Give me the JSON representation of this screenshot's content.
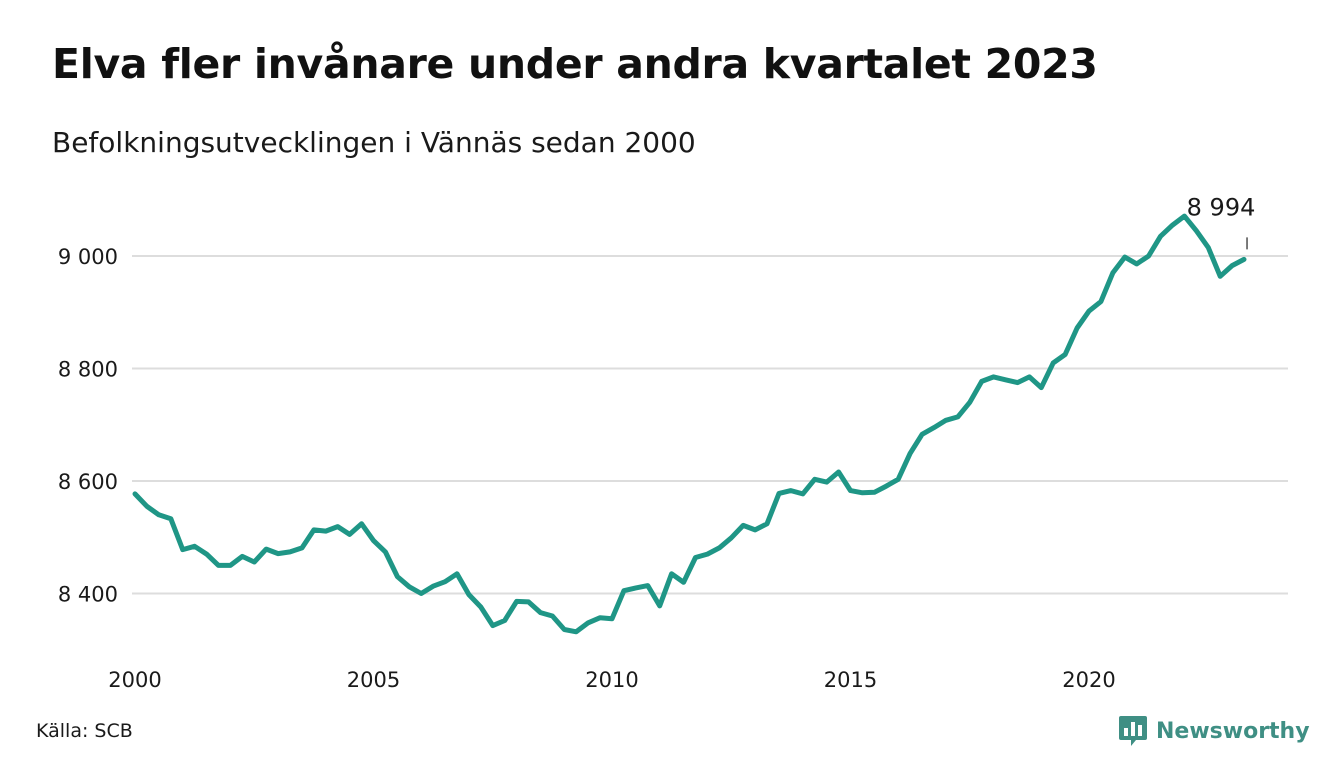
{
  "title": "Elva fler invånare under andra kvartalet 2023",
  "subtitle": "Befolkningsutvecklingen i Vännäs sedan 2000",
  "source": "Källa: SCB",
  "logo": {
    "text": "Newsworthy",
    "icon": "bar-chart-speech-bubble-icon"
  },
  "colors": {
    "line": "#1f9686",
    "grid": "#dddddd",
    "logo": "#3f8f84"
  },
  "chart_data": {
    "type": "line",
    "title": "Elva fler invånare under andra kvartalet 2023",
    "subtitle": "Befolkningsutvecklingen i Vännäs sedan 2000",
    "xlabel": "",
    "ylabel": "",
    "x_unit": "year",
    "xlim": [
      2000,
      2023.5
    ],
    "ylim": [
      8300,
      9050
    ],
    "yticks": [
      8400,
      8600,
      8800,
      9000
    ],
    "ytick_labels": [
      "8 400",
      "8 600",
      "8 800",
      "9 000"
    ],
    "xticks": [
      2000,
      2005,
      2010,
      2015,
      2020
    ],
    "xtick_labels": [
      "2000",
      "2005",
      "2010",
      "2015",
      "2020"
    ],
    "grid": "horizontal",
    "legend": "none",
    "annotation": {
      "x": 2023.25,
      "y": 8994,
      "label": "8 994"
    },
    "x": [
      2000.0,
      2000.25,
      2000.5,
      2000.75,
      2001.0,
      2001.25,
      2001.5,
      2001.75,
      2002.0,
      2002.25,
      2002.5,
      2002.75,
      2003.0,
      2003.25,
      2003.5,
      2003.75,
      2004.0,
      2004.25,
      2004.5,
      2004.75,
      2005.0,
      2005.25,
      2005.5,
      2005.75,
      2006.0,
      2006.25,
      2006.5,
      2006.75,
      2007.0,
      2007.25,
      2007.5,
      2007.75,
      2008.0,
      2008.25,
      2008.5,
      2008.75,
      2009.0,
      2009.25,
      2009.5,
      2009.75,
      2010.0,
      2010.25,
      2010.5,
      2010.75,
      2011.0,
      2011.25,
      2011.5,
      2011.75,
      2012.0,
      2012.25,
      2012.5,
      2012.75,
      2013.0,
      2013.25,
      2013.5,
      2013.75,
      2014.0,
      2014.25,
      2014.5,
      2014.75,
      2015.0,
      2015.25,
      2015.5,
      2015.75,
      2016.0,
      2016.25,
      2016.5,
      2016.75,
      2017.0,
      2017.25,
      2017.5,
      2017.75,
      2018.0,
      2018.25,
      2018.5,
      2018.75,
      2019.0,
      2019.25,
      2019.5,
      2019.75,
      2020.0,
      2020.25,
      2020.5,
      2020.75,
      2021.0,
      2021.25,
      2021.5,
      2021.75,
      2022.0,
      2022.25,
      2022.5,
      2022.75,
      2023.0,
      2023.25
    ],
    "series": [
      {
        "values": [
          8577,
          8555,
          8540,
          8533,
          8478,
          8484,
          8470,
          8450,
          8450,
          8466,
          8456,
          8479,
          8471,
          8474,
          8481,
          8513,
          8511,
          8519,
          8505,
          8524,
          8494,
          8474,
          8430,
          8412,
          8400,
          8413,
          8421,
          8435,
          8398,
          8376,
          8343,
          8352,
          8386,
          8385,
          8366,
          8360,
          8336,
          8332,
          8348,
          8357,
          8355,
          8405,
          8410,
          8414,
          8378,
          8435,
          8420,
          8464,
          8470,
          8481,
          8499,
          8521,
          8513,
          8524,
          8578,
          8583,
          8577,
          8603,
          8598,
          8616,
          8583,
          8579,
          8580,
          8591,
          8603,
          8649,
          8683,
          8695,
          8708,
          8714,
          8740,
          8777,
          8785,
          8780,
          8775,
          8785,
          8766,
          8810,
          8825,
          8872,
          8902,
          8919,
          8970,
          8998,
          8986,
          9000,
          9035,
          9055,
          9071,
          9045,
          9015,
          8964,
          8983,
          8994
        ]
      }
    ]
  }
}
